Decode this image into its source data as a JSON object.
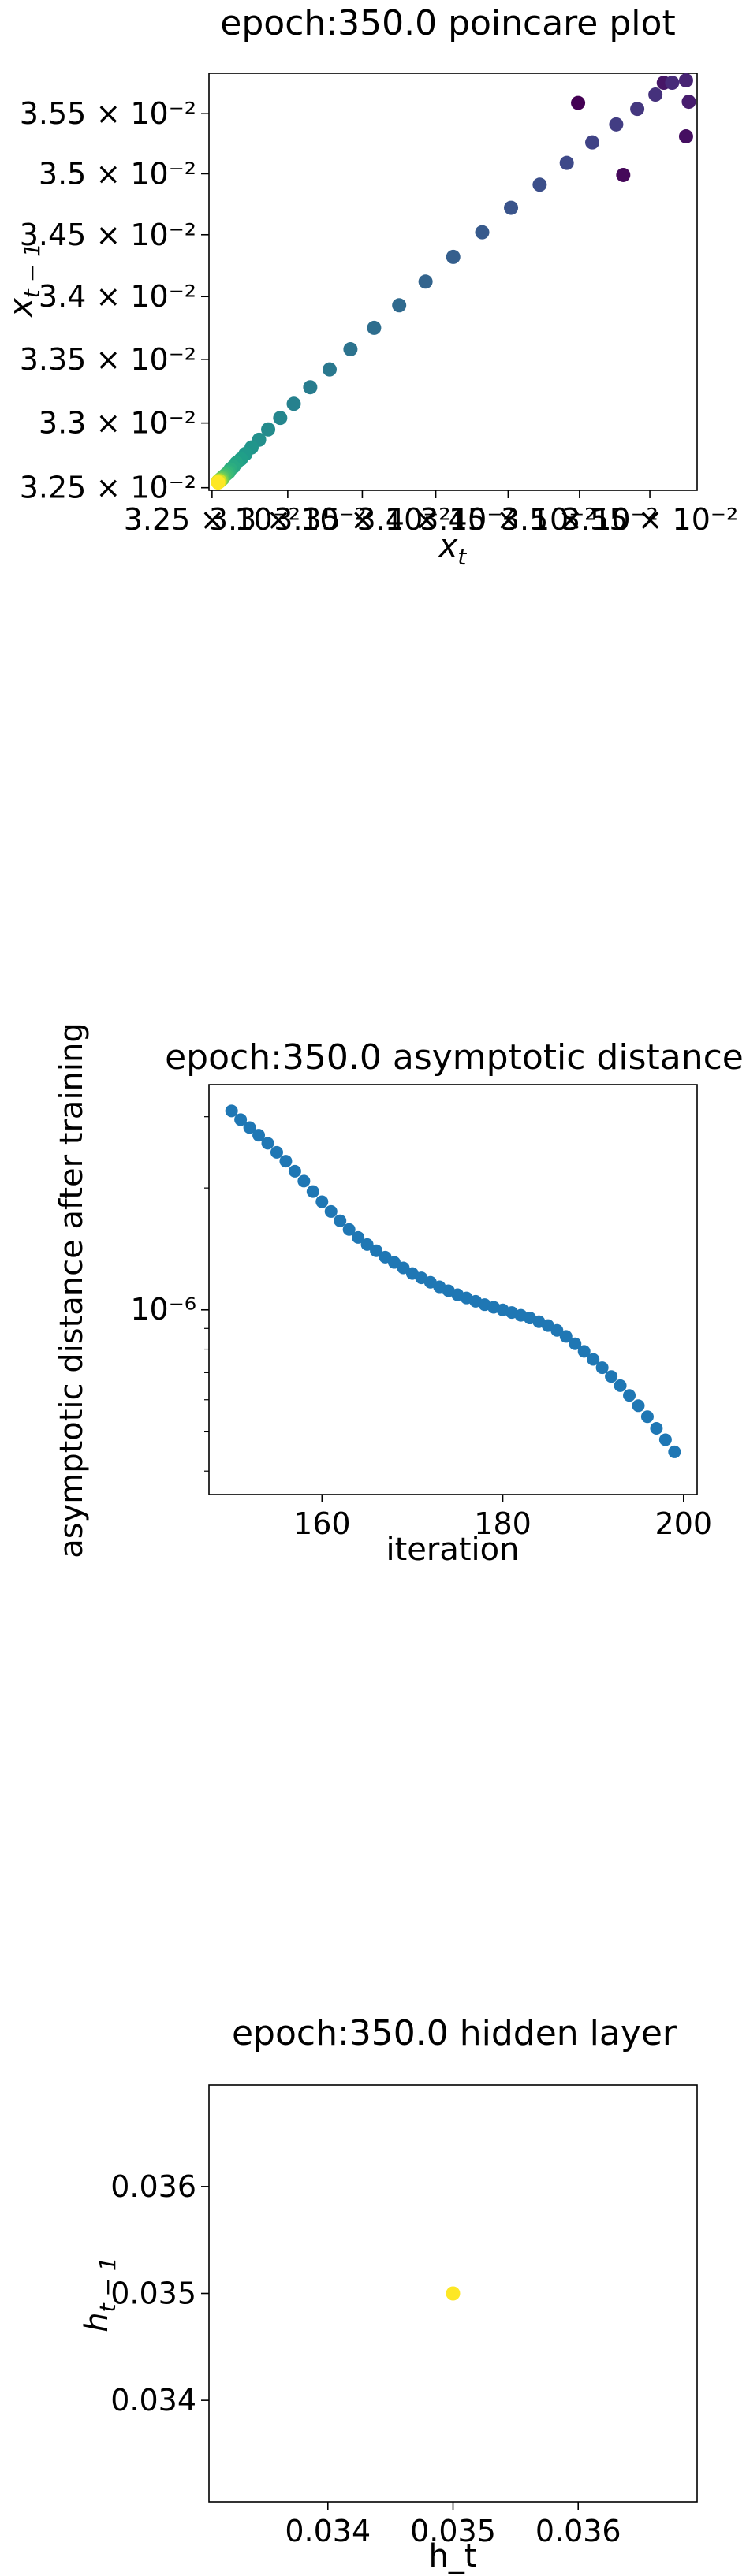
{
  "chart_data": [
    {
      "type": "scatter",
      "title": "epoch:350.0 poincare plot",
      "xlabel": "x_t",
      "ylabel": "x_{t-1}",
      "scale": "log",
      "colormap": "viridis",
      "xlim": [
        0.03248,
        0.03584
      ],
      "ylim": [
        0.03248,
        0.03584
      ],
      "xticks": [
        {
          "v": 0.0325,
          "label": "3.25 × 10⁻²"
        },
        {
          "v": 0.033,
          "label": "3.3 × 10⁻²"
        },
        {
          "v": 0.0335,
          "label": "3.35 × 10⁻²"
        },
        {
          "v": 0.034,
          "label": "3.4 × 10⁻²"
        },
        {
          "v": 0.0345,
          "label": "3.45 × 10⁻²"
        },
        {
          "v": 0.035,
          "label": "3.5 × 10⁻²"
        },
        {
          "v": 0.0355,
          "label": "3.55 × 10⁻²"
        }
      ],
      "yticks": [
        {
          "v": 0.0325,
          "label": "3.25 × 10⁻²"
        },
        {
          "v": 0.033,
          "label": "3.3 × 10⁻²"
        },
        {
          "v": 0.0335,
          "label": "3.35 × 10⁻²"
        },
        {
          "v": 0.034,
          "label": "3.4 × 10⁻²"
        },
        {
          "v": 0.0345,
          "label": "3.45 × 10⁻²"
        },
        {
          "v": 0.035,
          "label": "3.5 × 10⁻²"
        },
        {
          "v": 0.0355,
          "label": "3.55 × 10⁻²"
        }
      ],
      "points": [
        {
          "x": 0.03499,
          "y": 0.03559,
          "c": 0.0
        },
        {
          "x": 0.03531,
          "y": 0.03499,
          "c": 0.02
        },
        {
          "x": 0.03576,
          "y": 0.03531,
          "c": 0.04
        },
        {
          "x": 0.0356,
          "y": 0.03576,
          "c": 0.06
        },
        {
          "x": 0.03578,
          "y": 0.0356,
          "c": 0.08
        },
        {
          "x": 0.03576,
          "y": 0.03578,
          "c": 0.1
        },
        {
          "x": 0.03566,
          "y": 0.03576,
          "c": 0.12
        },
        {
          "x": 0.03554,
          "y": 0.03566,
          "c": 0.14
        },
        {
          "x": 0.03541,
          "y": 0.03554,
          "c": 0.16
        },
        {
          "x": 0.03526,
          "y": 0.03541,
          "c": 0.18
        },
        {
          "x": 0.03509,
          "y": 0.03526,
          "c": 0.2
        },
        {
          "x": 0.03491,
          "y": 0.03509,
          "c": 0.22
        },
        {
          "x": 0.03472,
          "y": 0.03491,
          "c": 0.24
        },
        {
          "x": 0.03452,
          "y": 0.03472,
          "c": 0.26
        },
        {
          "x": 0.03432,
          "y": 0.03452,
          "c": 0.28
        },
        {
          "x": 0.03412,
          "y": 0.03432,
          "c": 0.3
        },
        {
          "x": 0.03393,
          "y": 0.03412,
          "c": 0.32
        },
        {
          "x": 0.03375,
          "y": 0.03393,
          "c": 0.34
        },
        {
          "x": 0.03358,
          "y": 0.03375,
          "c": 0.36
        },
        {
          "x": 0.03342,
          "y": 0.03358,
          "c": 0.38
        },
        {
          "x": 0.03328,
          "y": 0.03342,
          "c": 0.4
        },
        {
          "x": 0.03315,
          "y": 0.03328,
          "c": 0.42
        },
        {
          "x": 0.03304,
          "y": 0.03315,
          "c": 0.44
        },
        {
          "x": 0.03295,
          "y": 0.03304,
          "c": 0.46
        },
        {
          "x": 0.03287,
          "y": 0.03295,
          "c": 0.48
        },
        {
          "x": 0.03281,
          "y": 0.03287,
          "c": 0.5
        },
        {
          "x": 0.03276,
          "y": 0.03281,
          "c": 0.52
        },
        {
          "x": 0.03272,
          "y": 0.03276,
          "c": 0.54
        },
        {
          "x": 0.03269,
          "y": 0.03272,
          "c": 0.56
        },
        {
          "x": 0.03266,
          "y": 0.03269,
          "c": 0.58
        },
        {
          "x": 0.03264,
          "y": 0.03266,
          "c": 0.6
        },
        {
          "x": 0.03262,
          "y": 0.03264,
          "c": 0.62
        },
        {
          "x": 0.03261,
          "y": 0.03262,
          "c": 0.64
        },
        {
          "x": 0.0326,
          "y": 0.03261,
          "c": 0.66
        },
        {
          "x": 0.03259,
          "y": 0.0326,
          "c": 0.68
        },
        {
          "x": 0.03258,
          "y": 0.03259,
          "c": 0.7
        },
        {
          "x": 0.03257,
          "y": 0.03258,
          "c": 0.72
        },
        {
          "x": 0.03257,
          "y": 0.03257,
          "c": 0.74
        },
        {
          "x": 0.03256,
          "y": 0.03257,
          "c": 0.76
        },
        {
          "x": 0.03256,
          "y": 0.03256,
          "c": 0.78
        },
        {
          "x": 0.03256,
          "y": 0.03256,
          "c": 0.8
        },
        {
          "x": 0.03255,
          "y": 0.03256,
          "c": 0.82
        },
        {
          "x": 0.03255,
          "y": 0.03255,
          "c": 0.84
        },
        {
          "x": 0.03255,
          "y": 0.03255,
          "c": 0.86
        },
        {
          "x": 0.03255,
          "y": 0.03255,
          "c": 0.88
        },
        {
          "x": 0.03255,
          "y": 0.03255,
          "c": 0.9
        },
        {
          "x": 0.03255,
          "y": 0.03255,
          "c": 0.92
        },
        {
          "x": 0.03254,
          "y": 0.03255,
          "c": 0.94
        },
        {
          "x": 0.03254,
          "y": 0.03254,
          "c": 0.96
        },
        {
          "x": 0.03254,
          "y": 0.03254,
          "c": 1.0
        }
      ]
    },
    {
      "type": "scatter",
      "title": "epoch:350.0 asymptotic distance",
      "xlabel": "iteration",
      "ylabel": "asymptotic distance after training",
      "yscale": "log",
      "color": "#1f77b4",
      "xlim": [
        147.5,
        201.5
      ],
      "ylim": [
        3.5e-07,
        3.6e-06
      ],
      "xticks": [
        {
          "v": 160,
          "label": "160"
        },
        {
          "v": 180,
          "label": "180"
        },
        {
          "v": 200,
          "label": "200"
        }
      ],
      "yticks": [
        {
          "v": 1e-06,
          "label": "10⁻⁶"
        }
      ],
      "x": [
        150,
        151,
        152,
        153,
        154,
        155,
        156,
        157,
        158,
        159,
        160,
        161,
        162,
        163,
        164,
        165,
        166,
        167,
        168,
        169,
        170,
        171,
        172,
        173,
        174,
        175,
        176,
        177,
        178,
        179,
        180,
        181,
        182,
        183,
        184,
        185,
        186,
        187,
        188,
        189,
        190,
        191,
        192,
        193,
        194,
        195,
        196,
        197,
        198,
        199
      ],
      "y": [
        3.1e-06,
        2.95e-06,
        2.82e-06,
        2.7e-06,
        2.58e-06,
        2.45e-06,
        2.33e-06,
        2.2e-06,
        2.08e-06,
        1.96e-06,
        1.85e-06,
        1.75e-06,
        1.66e-06,
        1.58e-06,
        1.51e-06,
        1.45e-06,
        1.4e-06,
        1.35e-06,
        1.31e-06,
        1.27e-06,
        1.23e-06,
        1.2e-06,
        1.17e-06,
        1.14e-06,
        1.115e-06,
        1.09e-06,
        1.07e-06,
        1.05e-06,
        1.03e-06,
        1.015e-06,
        1e-06,
        9.85e-07,
        9.7e-07,
        9.55e-07,
        9.35e-07,
        9.15e-07,
        8.9e-07,
        8.6e-07,
        8.25e-07,
        7.9e-07,
        7.55e-07,
        7.2e-07,
        6.85e-07,
        6.5e-07,
        6.15e-07,
        5.8e-07,
        5.45e-07,
        5.1e-07,
        4.78e-07,
        4.46e-07
      ]
    },
    {
      "type": "scatter",
      "title": "epoch:350.0 hidden layer",
      "xlabel": "h_t",
      "ylabel": "h_{t-1}",
      "color": "#fde725",
      "xlim": [
        0.03305,
        0.03695
      ],
      "ylim": [
        0.03305,
        0.03695
      ],
      "xticks": [
        {
          "v": 0.034,
          "label": "0.034"
        },
        {
          "v": 0.035,
          "label": "0.035"
        },
        {
          "v": 0.036,
          "label": "0.036"
        }
      ],
      "yticks": [
        {
          "v": 0.034,
          "label": "0.034"
        },
        {
          "v": 0.035,
          "label": "0.035"
        },
        {
          "v": 0.036,
          "label": "0.036"
        }
      ],
      "points": [
        {
          "x": 0.035,
          "y": 0.035
        }
      ]
    }
  ]
}
